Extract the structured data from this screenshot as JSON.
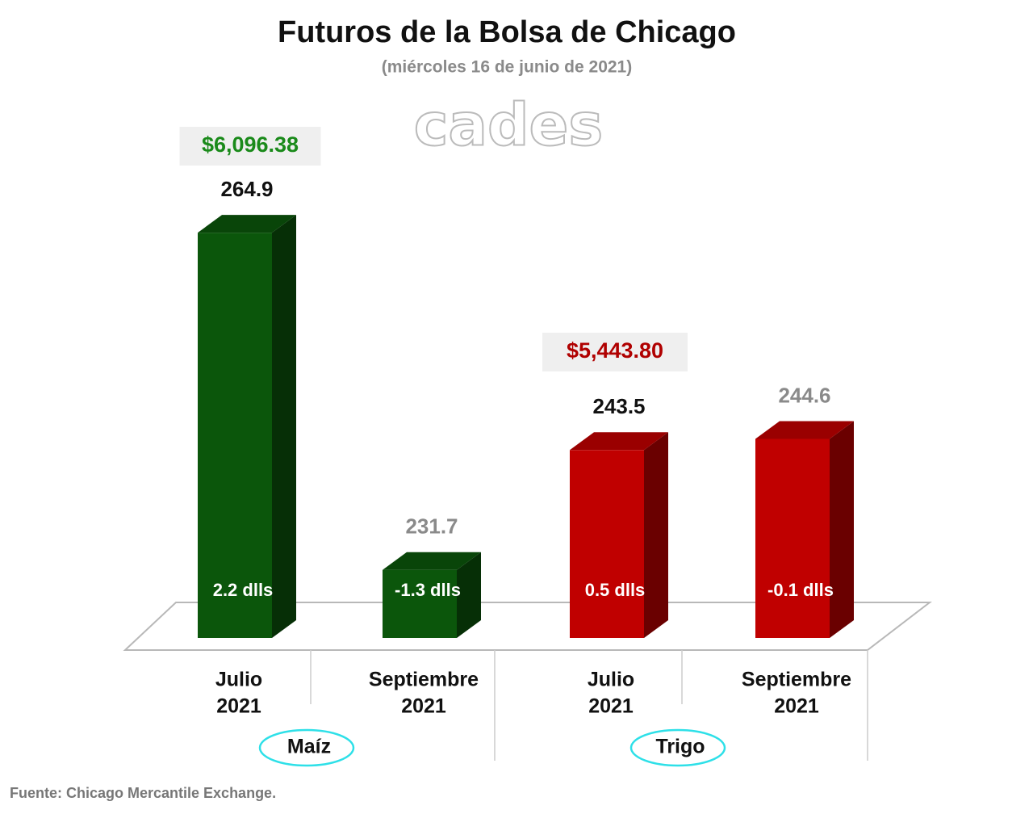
{
  "chart_data": {
    "type": "bar3d",
    "title": "Futuros de la Bolsa de Chicago",
    "subtitle": "(miércoles 16 de junio de 2021)",
    "watermark": "cades",
    "categories": [
      [
        "Julio",
        "2021"
      ],
      [
        "Septiembre",
        "2021"
      ],
      [
        "Julio",
        "2021"
      ],
      [
        "Septiembre",
        "2021"
      ]
    ],
    "values": [
      264.9,
      231.7,
      243.5,
      244.6
    ],
    "colors": [
      "#0b560b",
      "#0b560b",
      "#c00000",
      "#c00000"
    ],
    "value_label_colors": [
      "#111111",
      "#8a8a8a",
      "#111111",
      "#8a8a8a"
    ],
    "change_labels": [
      "2.2 dlls",
      "-1.3 dlls",
      "0.5 dlls",
      "-0.1 dlls"
    ],
    "groups": [
      {
        "name": "Maíz",
        "price": "$6,096.38",
        "price_color": "#1a8a1a"
      },
      {
        "name": "Trigo",
        "price": "$5,443.80",
        "price_color": "#b00000"
      }
    ],
    "ylim": [
      225,
      270
    ],
    "source": "Fuente: Chicago Mercantile Exchange."
  }
}
